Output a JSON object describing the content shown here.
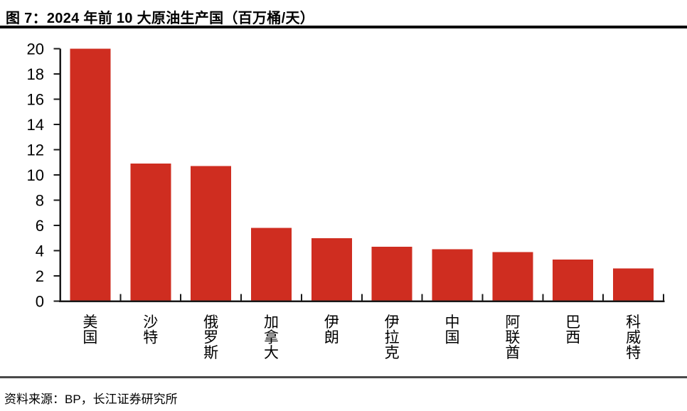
{
  "header": {
    "title": "图 7：2024 年前 10 大原油生产国（百万桶/天）"
  },
  "footer": {
    "source": "资料来源：BP，长江证券研究所"
  },
  "chart_data": {
    "type": "bar",
    "title": "2024 年前 10 大原油生产国",
    "figure_label": "图 7",
    "unit": "百万桶/天",
    "categories": [
      "美国",
      "沙特",
      "俄罗斯",
      "加拿大",
      "伊朗",
      "伊拉克",
      "中国",
      "阿联酋",
      "巴西",
      "科威特"
    ],
    "values": [
      20.0,
      10.9,
      10.7,
      5.8,
      5.0,
      4.3,
      4.1,
      3.9,
      3.3,
      2.6
    ],
    "yticks": [
      0,
      2,
      4,
      6,
      8,
      10,
      12,
      14,
      16,
      18,
      20
    ],
    "ylim": [
      0,
      20
    ],
    "xlabel": "",
    "ylabel": "",
    "grid": false,
    "legend": false,
    "x_label_orientation": "vertical-upright",
    "bar_color": "#CF2D20",
    "axis_color": "#1a1a1a",
    "tick_direction": {
      "x": "in",
      "y": "out"
    }
  }
}
